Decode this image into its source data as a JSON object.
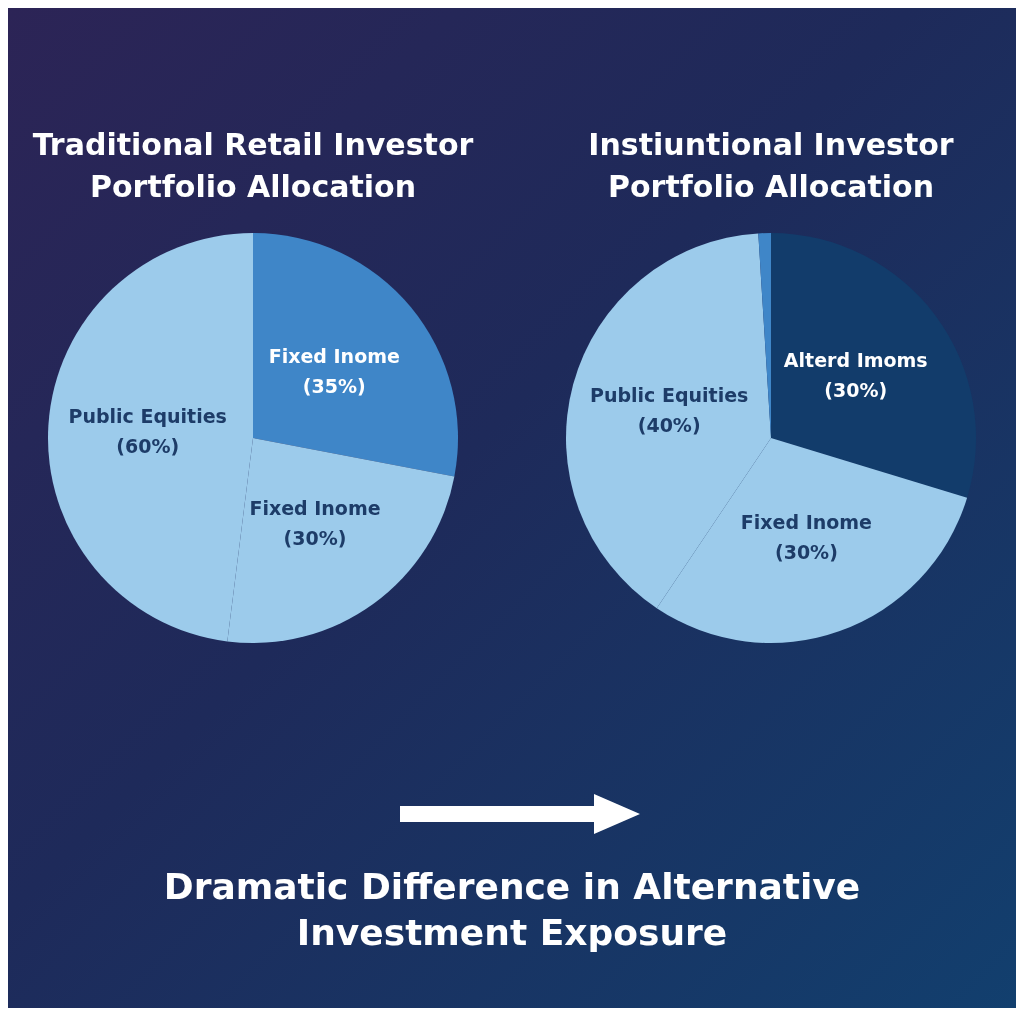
{
  "chart_data": [
    {
      "type": "pie",
      "title": "Traditional Retail Investor\nPortfolio Allocation",
      "categories": [
        "Fixed Inome",
        "Fixed Inome",
        "Public Equities"
      ],
      "values": [
        35,
        30,
        60
      ],
      "colors": [
        "#3f86c8",
        "#9ccbeb",
        "#9ccbeb"
      ],
      "value_labels": [
        "(35%)",
        "(30%)",
        "(60%)"
      ]
    },
    {
      "type": "pie",
      "title": "Instiuntional Investor\nPortfolio Allocation",
      "categories": [
        "Alterd Imoms",
        "Fixed Inome",
        "Public Equities",
        null
      ],
      "values": [
        30,
        30,
        40,
        1
      ],
      "colors": [
        "#123c6b",
        "#9ccbeb",
        "#9ccbeb",
        "#3f86c8"
      ],
      "value_labels": [
        "(30%)",
        "(30%)",
        "(40%)",
        null
      ],
      "annotations": [
        "Dramatic Difference in Alternative Investment Exposure"
      ]
    }
  ]
}
